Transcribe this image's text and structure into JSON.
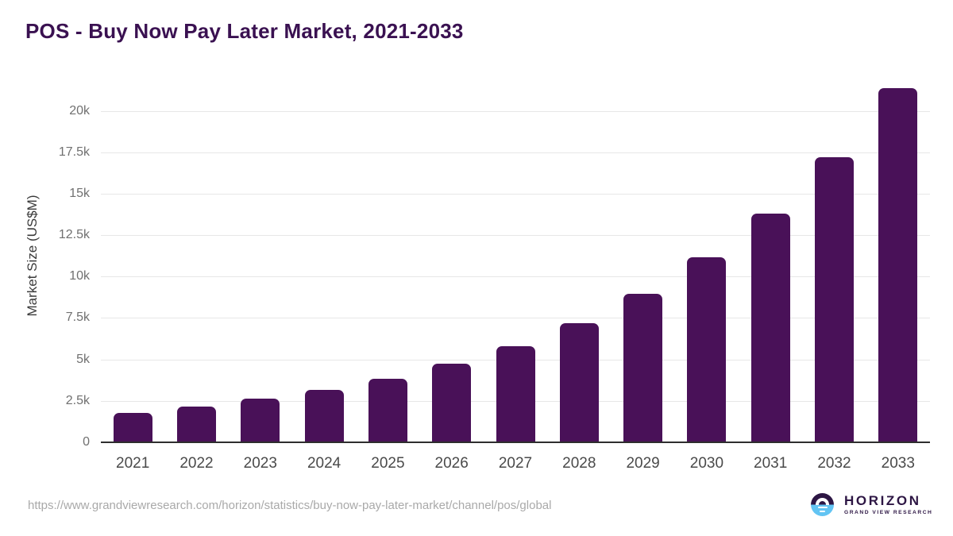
{
  "header": {
    "title": "POS - Buy Now Pay Later Market, 2021-2033"
  },
  "chart_data": {
    "type": "bar",
    "title": "POS - Buy Now Pay Later Market, 2021-2033",
    "categories": [
      "2021",
      "2022",
      "2023",
      "2024",
      "2025",
      "2026",
      "2027",
      "2028",
      "2029",
      "2030",
      "2031",
      "2032",
      "2033"
    ],
    "values": [
      1780,
      2140,
      2620,
      3180,
      3830,
      4760,
      5800,
      7180,
      8980,
      11170,
      13820,
      17200,
      21370
    ],
    "xlabel": "",
    "ylabel": "Market Size (US$M)",
    "ylim": [
      0,
      21500
    ],
    "yticks": {
      "values": [
        0,
        2500,
        5000,
        7500,
        10000,
        12500,
        15000,
        17500,
        20000
      ],
      "labels": [
        "0",
        "2.5k",
        "5k",
        "7.5k",
        "10k",
        "12.5k",
        "15k",
        "17.5k",
        "20k"
      ]
    },
    "grid": true,
    "legend_position": "none"
  },
  "footer": {
    "source_url": "https://www.grandviewresearch.com/horizon/statistics/buy-now-pay-later-market/channel/pos/global",
    "logo": {
      "brand": "HORIZON",
      "sub_brand": "GRAND VIEW RESEARCH"
    }
  },
  "colors": {
    "bar": "#491158",
    "title": "#3a1151",
    "gridline": "#e7e7e7",
    "axis_line": "#2e2e2e",
    "y_tick_text": "#707070",
    "x_tick_text": "#4a4a4a",
    "source_url_text": "#a9a9a9",
    "logo_purple": "#2d1644",
    "logo_blue": "#62c4f3"
  }
}
